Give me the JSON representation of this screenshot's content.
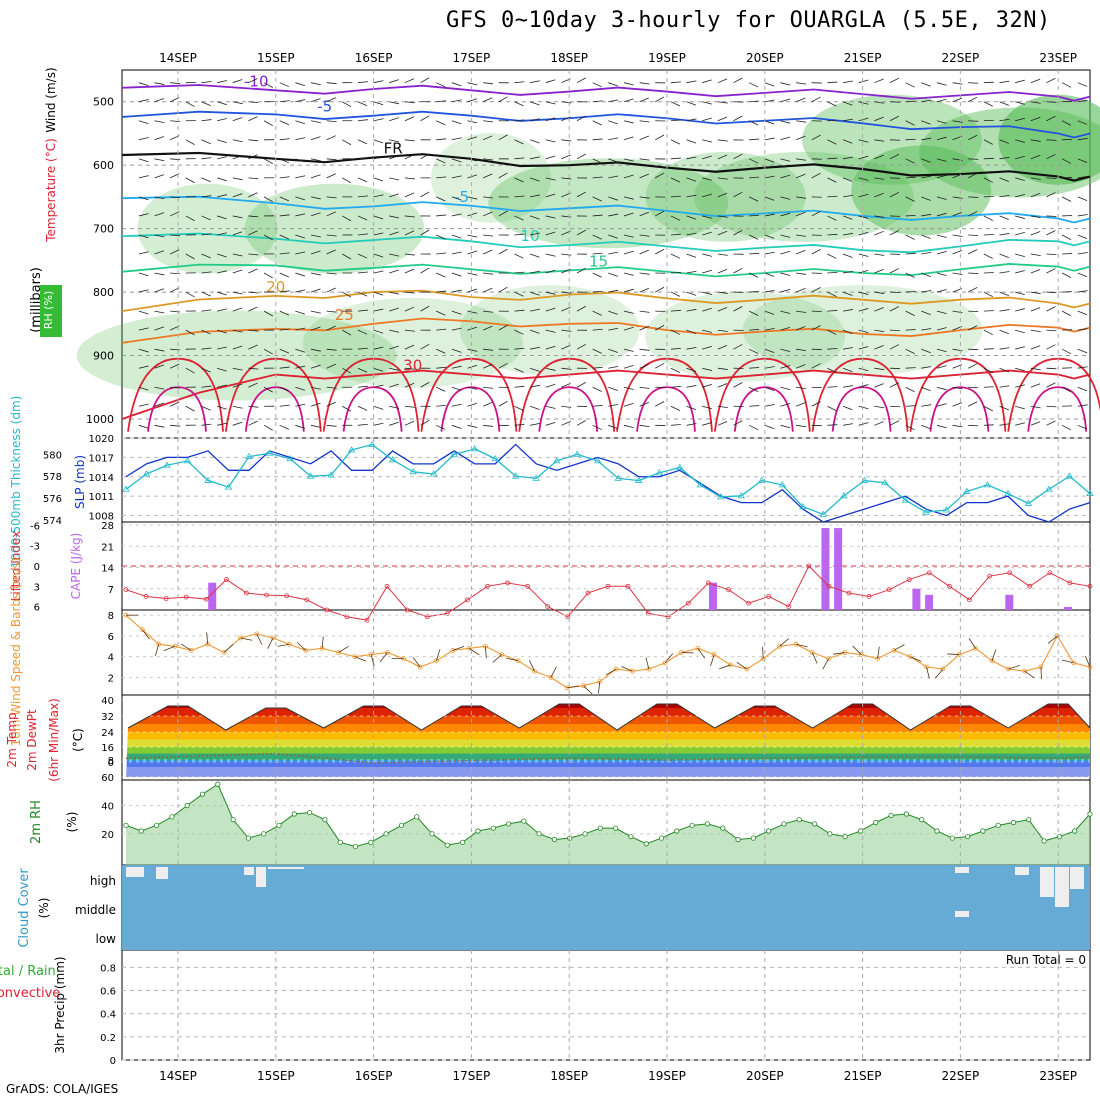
{
  "title": "GFS 0~10day 3-hourly for OUARGLA (5.5E, 32N)",
  "credit": "GrADS: COLA/IGES",
  "dates": [
    "14SEP",
    "15SEP",
    "16SEP",
    "17SEP",
    "18SEP",
    "19SEP",
    "20SEP",
    "21SEP",
    "22SEP",
    "23SEP"
  ],
  "run_total": "Run Total = 0",
  "chart_data": [
    {
      "type": "contour",
      "name": "upper-air",
      "ylabel_parts": [
        "RH (%)",
        "Temperature (°C)",
        "Wind (m/s)",
        "(millibars)"
      ],
      "yticks": [
        500,
        600,
        700,
        800,
        900,
        1000
      ],
      "ylim": [
        450,
        1030
      ],
      "temperature_contours": [
        {
          "label": "-10",
          "p": [
            478,
            482,
            480,
            482,
            484,
            484,
            486,
            488,
            490,
            492
          ]
        },
        {
          "label": "-5",
          "p": [
            524,
            520,
            522,
            522,
            526,
            526,
            530,
            534,
            540,
            550
          ]
        },
        {
          "label": "FR",
          "p": [
            584,
            590,
            588,
            590,
            600,
            604,
            604,
            606,
            614,
            618
          ]
        },
        {
          "label": "-5",
          "p": [
            652,
            660,
            665,
            664,
            668,
            672,
            676,
            680,
            680,
            684
          ]
        },
        {
          "label": "10",
          "p": [
            712,
            716,
            718,
            720,
            726,
            728,
            730,
            734,
            728,
            720
          ]
        },
        {
          "label": "15",
          "p": [
            768,
            758,
            762,
            764,
            766,
            768,
            770,
            770,
            764,
            760
          ]
        },
        {
          "label": "20",
          "p": [
            830,
            806,
            800,
            808,
            804,
            810,
            812,
            812,
            812,
            818
          ]
        },
        {
          "label": "25",
          "p": [
            880,
            858,
            850,
            846,
            850,
            860,
            862,
            866,
            860,
            856
          ]
        },
        {
          "label": "30",
          "p": [
            1000,
            930,
            930,
            930,
            930,
            930,
            930,
            930,
            930,
            930
          ]
        }
      ],
      "contour_colors": [
        "#8822cc",
        "#2255dd",
        "#111111",
        "#22aaee",
        "#22ccbb",
        "#22cc88",
        "#dd9922",
        "#ee7722",
        "#dd2233"
      ]
    },
    {
      "type": "line",
      "name": "slp-thickness",
      "ylabel_left": "1000-500mb Thickness (dm)",
      "ylabel_right": "SLP (mb)",
      "yticks_left": [
        574,
        576,
        578,
        580
      ],
      "yticks_right": [
        1008,
        1011,
        1014,
        1017,
        1020
      ],
      "series": [
        {
          "name": "SLP (mb)",
          "color": "#1133cc",
          "values": [
            1014,
            1016,
            1017,
            1017,
            1018,
            1015,
            1015,
            1018,
            1017,
            1016,
            1018,
            1015,
            1015,
            1018,
            1016,
            1016,
            1018,
            1016,
            1016,
            1019,
            1016,
            1015,
            1016,
            1017,
            1016,
            1014,
            1014,
            1015,
            1013,
            1011,
            1010,
            1010,
            1012,
            1009,
            1007,
            1008,
            1009,
            1010,
            1011,
            1009,
            1008,
            1010,
            1010,
            1011,
            1008,
            1007,
            1009,
            1010
          ]
        },
        {
          "name": "Thickness (dm)",
          "color": "#22bbcc",
          "values": [
            576.8,
            578.2,
            579.0,
            579.4,
            577.6,
            577.0,
            579.8,
            580.1,
            579.6,
            578.0,
            578.1,
            580.4,
            580.9,
            579.5,
            578.4,
            578.2,
            580.0,
            580.5,
            579.6,
            578.0,
            577.8,
            579.4,
            580.0,
            579.4,
            577.8,
            577.6,
            578.3,
            578.8,
            577.2,
            576.1,
            576.2,
            577.6,
            577.2,
            575.2,
            574.5,
            576.2,
            577.6,
            577.4,
            575.8,
            574.7,
            574.9,
            576.6,
            577.2,
            576.4,
            575.5,
            576.8,
            578.0,
            576.4
          ]
        }
      ]
    },
    {
      "type": "bar+line",
      "name": "cape-lifted-index",
      "ylabel_left": "Lifted Index",
      "ylabel_right": "CAPE (J/kg)",
      "yticks_left": [
        -6,
        -3,
        0,
        3,
        6
      ],
      "yticks_right": [
        7,
        14,
        21,
        28
      ],
      "cape_bars": [
        {
          "day": 14.35,
          "value": 9
        },
        {
          "day": 19.47,
          "value": 9
        },
        {
          "day": 20.62,
          "value": 27
        },
        {
          "day": 20.75,
          "value": 27
        },
        {
          "day": 21.55,
          "value": 7
        },
        {
          "day": 21.68,
          "value": 5
        },
        {
          "day": 22.5,
          "value": 5
        },
        {
          "day": 23.1,
          "value": 1
        }
      ],
      "lifted_index": [
        3.5,
        4.5,
        4.8,
        4.6,
        4.9,
        2.0,
        4.0,
        4.3,
        4.4,
        5.0,
        6.5,
        7.5,
        8.0,
        3.0,
        6.5,
        7.5,
        7.0,
        5.0,
        3.0,
        2.5,
        3.0,
        6.0,
        7.5,
        4.0,
        3.0,
        3.0,
        7.0,
        7.5,
        5.5,
        2.5,
        3.5,
        5.5,
        4.5,
        6.0,
        0.0,
        3.0,
        4.0,
        4.5,
        3.5,
        2.0,
        1.0,
        3.0,
        5.0,
        1.5,
        1.0,
        3.0,
        1.0,
        2.5,
        3.0
      ]
    },
    {
      "type": "line",
      "name": "wind-10m",
      "ylabel": "10m Wind Speed & Barbs (m/s)",
      "yticks": [
        2,
        4,
        6,
        8
      ],
      "values": [
        8.0,
        6.6,
        5.2,
        5.0,
        4.6,
        5.2,
        4.4,
        5.8,
        6.2,
        5.8,
        5.2,
        4.6,
        4.8,
        4.4,
        4.0,
        4.2,
        4.4,
        3.8,
        3.0,
        3.6,
        4.6,
        4.8,
        5.0,
        4.2,
        3.6,
        2.6,
        2.0,
        1.0,
        1.2,
        1.6,
        2.8,
        2.6,
        2.8,
        3.4,
        4.4,
        4.8,
        4.2,
        3.2,
        2.8,
        3.8,
        5.0,
        5.2,
        4.4,
        3.8,
        4.4,
        4.2,
        3.8,
        4.6,
        4.0,
        3.0,
        2.8,
        4.2,
        4.8,
        3.6,
        2.8,
        2.6,
        3.0,
        6.0,
        3.4,
        3.0
      ]
    },
    {
      "type": "area",
      "name": "temp-dewpoint",
      "ylabel": "2m Temp 2m DewPt (6hr Min/Max) (°C)",
      "yticks": [
        40,
        32,
        24,
        16,
        8,
        0,
        -60
      ],
      "temp_max": [
        37,
        36,
        37,
        37,
        38,
        38,
        37,
        38,
        37,
        38
      ],
      "temp_min": [
        26,
        25,
        26,
        25,
        26,
        25,
        26,
        26,
        25,
        26
      ],
      "dewpoint": [
        10,
        12,
        -4,
        6,
        9,
        8,
        9,
        10,
        10,
        9
      ]
    },
    {
      "type": "area",
      "name": "rh-2m",
      "ylabel": "2m RH (%)",
      "yticks": [
        20,
        40
      ],
      "values": [
        26,
        22,
        26,
        32,
        40,
        48,
        55,
        30,
        17,
        20,
        26,
        34,
        35,
        30,
        14,
        11,
        14,
        20,
        26,
        32,
        20,
        12,
        14,
        22,
        24,
        27,
        29,
        20,
        16,
        17,
        20,
        24,
        24,
        18,
        13,
        17,
        22,
        26,
        27,
        24,
        16,
        17,
        22,
        27,
        30,
        27,
        20,
        18,
        22,
        28,
        33,
        34,
        30,
        22,
        17,
        18,
        22,
        26,
        28,
        30,
        15,
        18,
        22,
        34
      ]
    },
    {
      "type": "area",
      "name": "cloud-cover",
      "ylabel": "Cloud Cover (%)",
      "ytick_labels": [
        "high",
        "middle",
        "low"
      ]
    },
    {
      "type": "bar",
      "name": "precip",
      "ylabel": "3hr Precip (mm)",
      "side_labels": [
        "Total / Rain",
        "Convective"
      ],
      "yticks": [
        0,
        0.2,
        0.4,
        0.6,
        0.8
      ],
      "ylim": [
        0,
        0.95
      ],
      "values": []
    }
  ]
}
